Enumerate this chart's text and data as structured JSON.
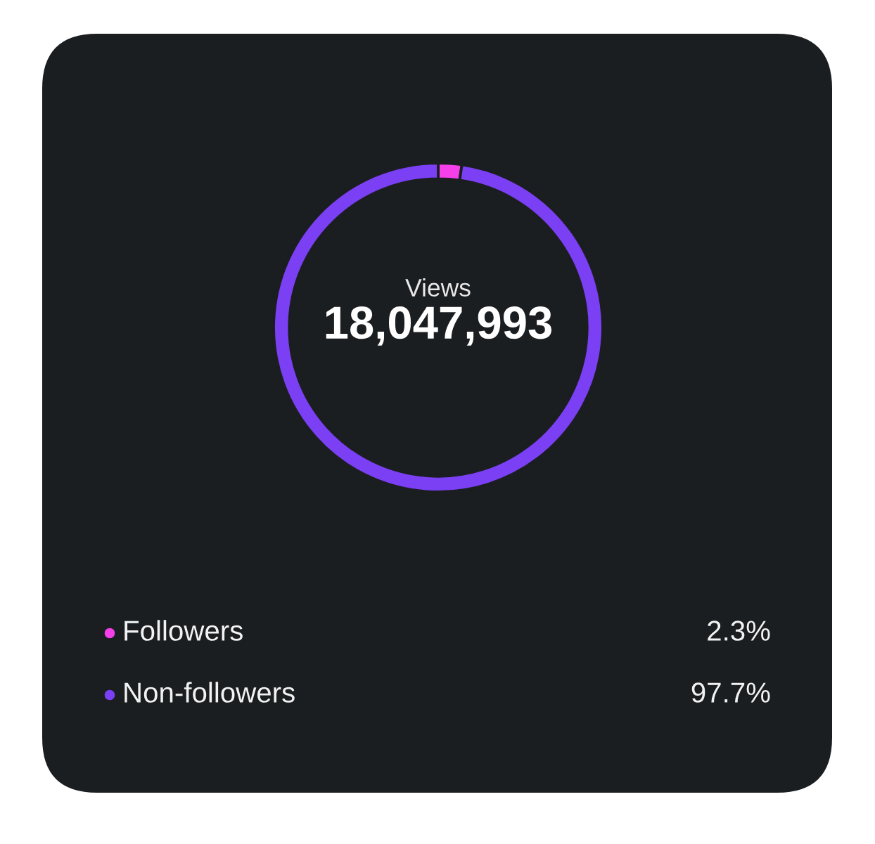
{
  "chart_data": {
    "type": "donut",
    "title": "Views",
    "annotations": [
      "18,047,993"
    ],
    "categories": [
      "Followers",
      "Non-followers"
    ],
    "values": [
      2.3,
      97.7
    ],
    "colors": [
      "#f53fe9",
      "#7b3ff4"
    ],
    "value_labels": [
      "2.3%",
      "97.7%"
    ],
    "legend": "bottom"
  }
}
